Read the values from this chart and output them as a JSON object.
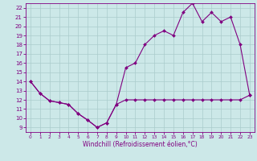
{
  "xlabel": "Windchill (Refroidissement éolien,°C)",
  "bg_color": "#cce8e8",
  "line_color": "#800080",
  "grid_color": "#aacccc",
  "xlim": [
    -0.5,
    23.5
  ],
  "ylim": [
    8.5,
    22.5
  ],
  "xticks": [
    0,
    1,
    2,
    3,
    4,
    5,
    6,
    7,
    8,
    9,
    10,
    11,
    12,
    13,
    14,
    15,
    16,
    17,
    18,
    19,
    20,
    21,
    22,
    23
  ],
  "yticks": [
    9,
    10,
    11,
    12,
    13,
    14,
    15,
    16,
    17,
    18,
    19,
    20,
    21,
    22
  ],
  "series1_x": [
    0,
    1,
    2,
    3,
    4,
    5,
    6,
    7,
    8,
    9,
    10,
    11,
    12,
    13,
    14,
    15,
    16,
    17,
    18,
    19,
    20,
    21,
    22,
    23
  ],
  "series1_y": [
    14.0,
    12.7,
    11.9,
    11.7,
    11.5,
    10.5,
    9.8,
    9.0,
    9.5,
    11.5,
    12.0,
    12.0,
    12.0,
    12.0,
    12.0,
    12.0,
    12.0,
    12.0,
    12.0,
    12.0,
    12.0,
    12.0,
    12.0,
    12.5
  ],
  "series2_x": [
    0,
    1,
    2,
    3,
    4,
    5,
    6,
    7,
    8,
    9,
    10,
    11,
    12,
    13,
    14,
    15,
    16,
    17,
    18,
    19,
    20,
    21,
    22,
    23
  ],
  "series2_y": [
    14.0,
    12.7,
    11.9,
    11.7,
    11.5,
    10.5,
    9.8,
    9.0,
    9.5,
    11.5,
    15.5,
    16.0,
    18.0,
    19.0,
    19.5,
    19.0,
    21.5,
    22.5,
    20.5,
    21.5,
    20.5,
    21.0,
    18.0,
    12.5
  ]
}
